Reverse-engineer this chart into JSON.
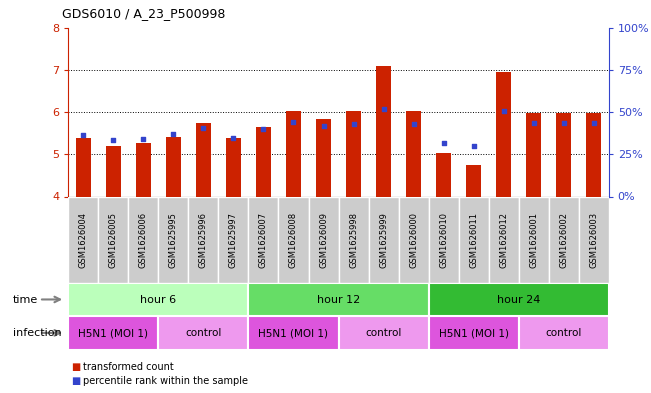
{
  "title": "GDS6010 / A_23_P500998",
  "samples": [
    "GSM1626004",
    "GSM1626005",
    "GSM1626006",
    "GSM1625995",
    "GSM1625996",
    "GSM1625997",
    "GSM1626007",
    "GSM1626008",
    "GSM1626009",
    "GSM1625998",
    "GSM1625999",
    "GSM1626000",
    "GSM1626010",
    "GSM1626011",
    "GSM1626012",
    "GSM1626001",
    "GSM1626002",
    "GSM1626003"
  ],
  "red_values": [
    5.38,
    5.2,
    5.27,
    5.42,
    5.74,
    5.38,
    5.65,
    6.02,
    5.83,
    6.02,
    7.1,
    6.02,
    5.02,
    4.75,
    6.95,
    5.97,
    5.97,
    5.98
  ],
  "blue_values": [
    5.45,
    5.33,
    5.37,
    5.48,
    5.63,
    5.38,
    5.6,
    5.77,
    5.67,
    5.72,
    6.07,
    5.72,
    5.27,
    5.2,
    6.02,
    5.75,
    5.73,
    5.73
  ],
  "ylim_left": [
    4,
    8
  ],
  "ylim_right": [
    0,
    100
  ],
  "yticks_left": [
    4,
    5,
    6,
    7,
    8
  ],
  "yticks_right": [
    0,
    25,
    50,
    75,
    100
  ],
  "ytick_labels_right": [
    "0%",
    "25%",
    "50%",
    "75%",
    "100%"
  ],
  "bar_color": "#cc2200",
  "blue_color": "#3344cc",
  "bar_bottom": 4.0,
  "bar_width": 0.5,
  "groups": [
    {
      "label": "hour 6",
      "start": 0,
      "end": 6,
      "color": "#bbffbb"
    },
    {
      "label": "hour 12",
      "start": 6,
      "end": 12,
      "color": "#66dd66"
    },
    {
      "label": "hour 24",
      "start": 12,
      "end": 18,
      "color": "#33bb33"
    }
  ],
  "infections": [
    {
      "label": "H5N1 (MOI 1)",
      "start": 0,
      "end": 3,
      "color": "#dd55dd"
    },
    {
      "label": "control",
      "start": 3,
      "end": 6,
      "color": "#ee99ee"
    },
    {
      "label": "H5N1 (MOI 1)",
      "start": 6,
      "end": 9,
      "color": "#dd55dd"
    },
    {
      "label": "control",
      "start": 9,
      "end": 12,
      "color": "#ee99ee"
    },
    {
      "label": "H5N1 (MOI 1)",
      "start": 12,
      "end": 15,
      "color": "#dd55dd"
    },
    {
      "label": "control",
      "start": 15,
      "end": 18,
      "color": "#ee99ee"
    }
  ],
  "time_label": "time",
  "infection_label": "infection",
  "legend_red": "transformed count",
  "legend_blue": "percentile rank within the sample",
  "left_axis_color": "#cc2200",
  "right_axis_color": "#3344cc",
  "label_gray": "#cccccc",
  "tick_label_box_color": "#cccccc"
}
